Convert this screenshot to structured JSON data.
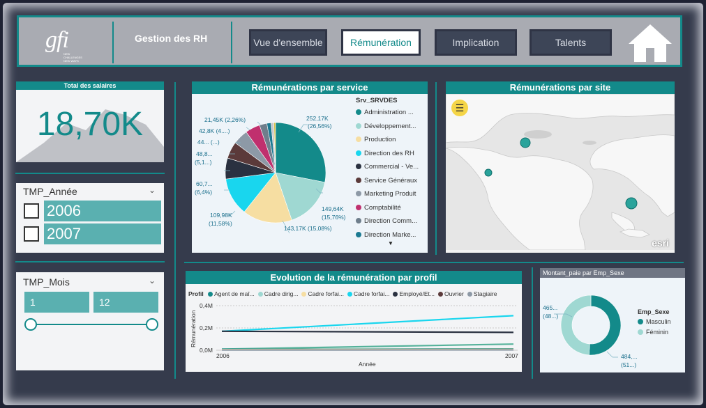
{
  "header": {
    "logo_text": "gfi",
    "logo_tagline": "NEW CHALLENGES NEW WAYS",
    "title": "Gestion des RH",
    "nav": [
      {
        "label": "Vue d'ensemble",
        "active": false
      },
      {
        "label": "Rémunération",
        "active": true
      },
      {
        "label": "Implication",
        "active": false
      },
      {
        "label": "Talents",
        "active": false
      }
    ],
    "home_icon": "home-icon"
  },
  "kpi": {
    "title": "Total des salaires",
    "value": "18,70K"
  },
  "slicer_year": {
    "title": "TMP_Année",
    "options": [
      "2006",
      "2007"
    ]
  },
  "slicer_month": {
    "title": "TMP_Mois",
    "from": "1",
    "to": "12",
    "range": [
      1,
      12
    ]
  },
  "pie_service": {
    "title": "Rémunérations par service",
    "legend_title": "Srv_SRVDES",
    "legend": [
      "Administration ...",
      "Développement...",
      "Production",
      "Direction des RH",
      "Commercial - Ve...",
      "Service Généraux",
      "Marketing Produit",
      "Comptabilité",
      "Direction Comm...",
      "Direction Marke..."
    ],
    "labels": {
      "l1": "252,17K",
      "l1b": "(26,56%)",
      "l2": "149,64K",
      "l2b": "(15,76%)",
      "l3": "143,17K (15,08%)",
      "l4": "109,98K",
      "l4b": "(11,58%)",
      "l5": "60,7...",
      "l5b": "(6,4%)",
      "l6": "48,8...",
      "l6b": "(5,1...)",
      "l7": "44... (...)",
      "l8": "42,8K (4....)",
      "l9": "21,45K (2,26%)"
    }
  },
  "map": {
    "title": "Rémunérations par site",
    "menu_icon": "menu-icon",
    "attribution": "esri"
  },
  "line_chart": {
    "title": "Evolution de la rémunération par profil",
    "legend_title": "Profil",
    "legend": [
      "Agent de maî...",
      "Cadre dirig...",
      "Cadre forfai...",
      "Cadre forfai...",
      "Employé/Et...",
      "Ouvrier",
      "Stagiaire"
    ],
    "ylabel": "Rémunération",
    "xlabel": "Année",
    "yticks": [
      "0,4M",
      "0,2M",
      "0,0M"
    ],
    "xticks": [
      "2006",
      "2007"
    ]
  },
  "donut": {
    "title": "Montant_paie par Emp_Sexe",
    "legend_title": "Emp_Sexe",
    "legend": [
      "Masculin",
      "Féminin"
    ],
    "label_f": "465...",
    "label_f2": "(48...)",
    "label_m": "484,...",
    "label_m2": "(51...)"
  },
  "chart_data": [
    {
      "type": "pie",
      "title": "Rémunérations par service",
      "legend_title": "Srv_SRVDES",
      "categories": [
        "Administration ...",
        "Développement...",
        "Production",
        "Direction des RH",
        "Commercial - Ve...",
        "Service Généraux",
        "Marketing Produit",
        "Comptabilité",
        "Direction Comm...",
        "Direction Marke...",
        "",
        ""
      ],
      "values": [
        252.17,
        149.64,
        143.17,
        109.98,
        60.7,
        48.8,
        44,
        42.8,
        21.45,
        12,
        8,
        5
      ],
      "colors": [
        "#138a8a",
        "#9fd8d2",
        "#f6dea2",
        "#19d6ee",
        "#2a3140",
        "#5b3a3a",
        "#8d99a6",
        "#c0306e",
        "#6f7e8c",
        "#1c7a92",
        "#c8c8c8",
        "#d8c24a"
      ]
    },
    {
      "type": "line",
      "title": "Evolution de la rémunération par profil",
      "x": [
        2006,
        2007
      ],
      "xlabel": "Année",
      "ylabel": "Rémunération",
      "ylim": [
        0,
        0.4
      ],
      "series": [
        {
          "name": "Cadre forfai...",
          "values": [
            0.17,
            0.31
          ],
          "color": "#19d6ee"
        },
        {
          "name": "Employé/Et...",
          "values": [
            0.17,
            0.16
          ],
          "color": "#2a3140"
        },
        {
          "name": "Cadre dirig...",
          "values": [
            0.01,
            0.055
          ],
          "color": "#55b29a"
        },
        {
          "name": "Agent de maî...",
          "values": [
            0.008,
            0.012
          ],
          "color": "#138a8a"
        },
        {
          "name": "Ouvrier",
          "values": [
            0.004,
            0.006
          ],
          "color": "#5b3a3a"
        },
        {
          "name": "Cadre forfai...",
          "values": [
            0.006,
            0.008
          ],
          "color": "#f6dea2"
        },
        {
          "name": "Stagiaire",
          "values": [
            0.002,
            0.003
          ],
          "color": "#8d99a6"
        }
      ]
    },
    {
      "type": "pie",
      "title": "Montant_paie par Emp_Sexe",
      "categories": [
        "Masculin",
        "Féminin"
      ],
      "values": [
        51.0,
        49.0
      ],
      "colors": [
        "#138a8a",
        "#9fd8d2"
      ]
    }
  ]
}
